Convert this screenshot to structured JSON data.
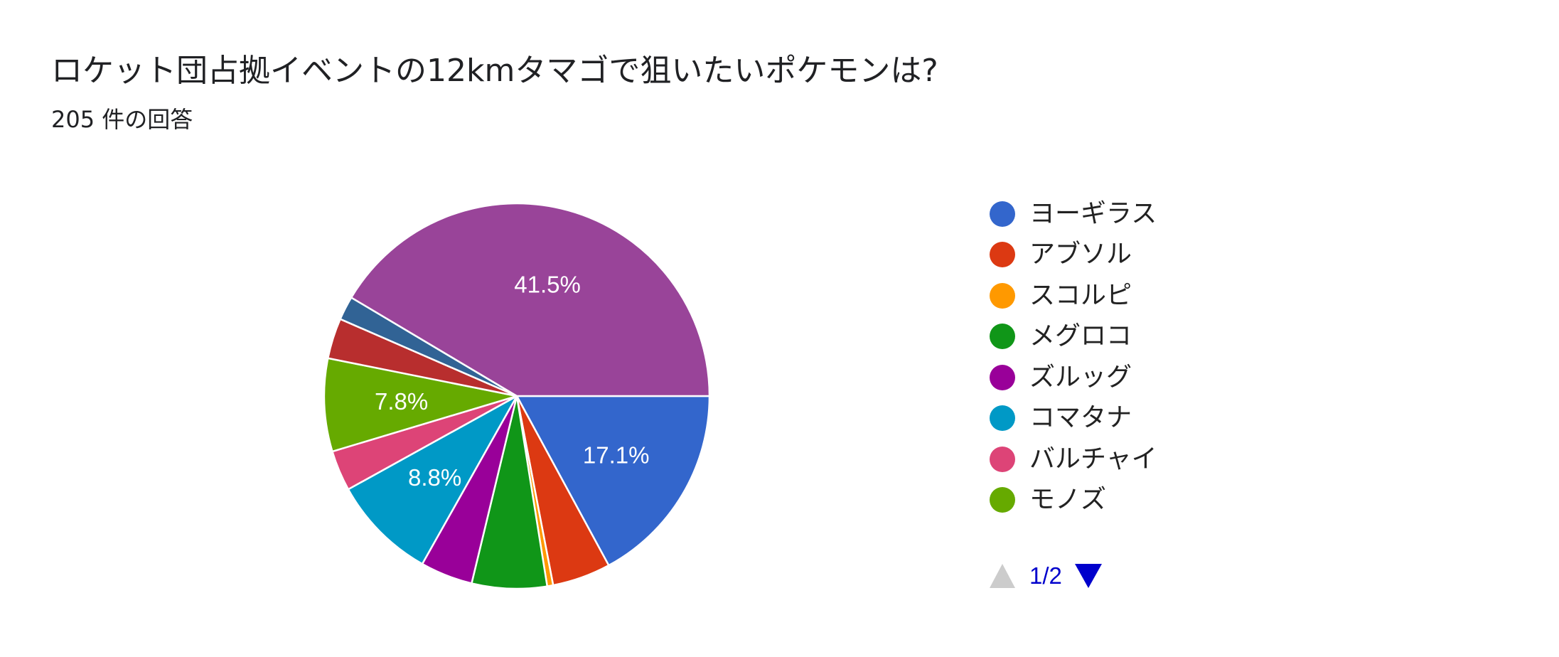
{
  "header": {
    "title": "ロケット団占拠イベントの12kmタマゴで狙いたいポケモンは?",
    "response_count": "205 件の回答"
  },
  "legend": {
    "items": [
      {
        "label": "ヨーギラス",
        "color": "#3366cc"
      },
      {
        "label": "アブソル",
        "color": "#dc3912"
      },
      {
        "label": "スコルピ",
        "color": "#ff9900"
      },
      {
        "label": "メグロコ",
        "color": "#109618"
      },
      {
        "label": "ズルッグ",
        "color": "#990099"
      },
      {
        "label": "コマタナ",
        "color": "#0099c6"
      },
      {
        "label": "バルチャイ",
        "color": "#dd4477"
      },
      {
        "label": "モノズ",
        "color": "#66aa00"
      }
    ],
    "page_indicator": "1/2",
    "prev_icon": "triangle-up-icon",
    "next_icon": "triangle-down-icon"
  },
  "chart_data": {
    "type": "pie",
    "series": [
      {
        "name": "ヨーギラス",
        "value": 17.1,
        "color": "#3366cc",
        "label": "17.1%"
      },
      {
        "name": "アブソル",
        "value": 4.9,
        "color": "#dc3912",
        "label": ""
      },
      {
        "name": "スコルピ",
        "value": 0.5,
        "color": "#ff9900",
        "label": ""
      },
      {
        "name": "メグロコ",
        "value": 6.3,
        "color": "#109618",
        "label": ""
      },
      {
        "name": "ズルッグ",
        "value": 4.4,
        "color": "#990099",
        "label": ""
      },
      {
        "name": "コマタナ",
        "value": 8.8,
        "color": "#0099c6",
        "label": "8.8%"
      },
      {
        "name": "バルチャイ",
        "value": 3.4,
        "color": "#dd4477",
        "label": ""
      },
      {
        "name": "モノズ",
        "value": 7.8,
        "color": "#66aa00",
        "label": "7.8%"
      },
      {
        "value": 3.4,
        "color": "#b82e2e",
        "label": ""
      },
      {
        "value": 2.0,
        "color": "#316395",
        "label": ""
      },
      {
        "value": 41.5,
        "color": "#994499",
        "label": "41.5%"
      }
    ],
    "start": "3 o'clock",
    "direction": "clockwise",
    "legend_position": "right"
  }
}
